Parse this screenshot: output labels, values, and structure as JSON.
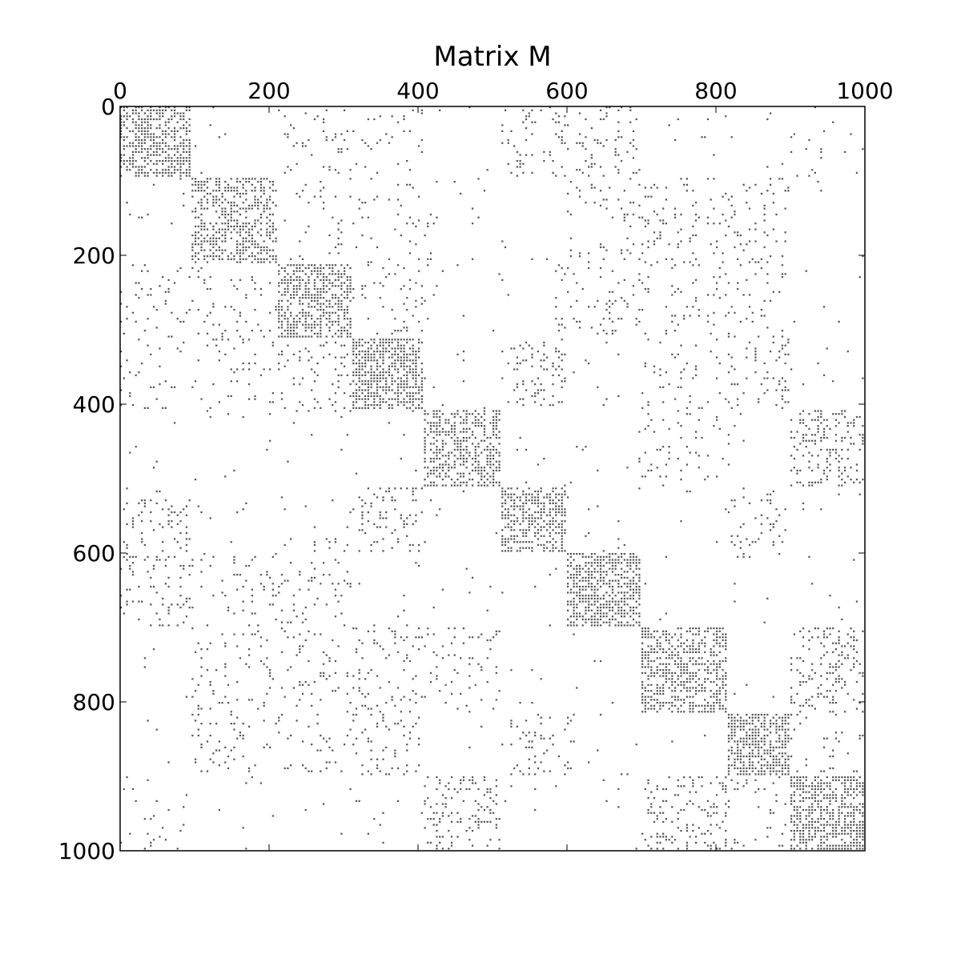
{
  "chart_data": {
    "type": "heatmap",
    "style": "sparsity-pattern",
    "title": "Matrix M",
    "xlabel": "",
    "ylabel": "",
    "x_axis_position": "top",
    "y_axis_inverted": true,
    "xlim": [
      0,
      1000
    ],
    "ylim": [
      1000,
      0
    ],
    "x_ticks": [
      0,
      200,
      400,
      600,
      800,
      1000
    ],
    "y_ticks": [
      0,
      200,
      400,
      600,
      800,
      1000
    ],
    "x_tick_labels": [
      "0",
      "200",
      "400",
      "600",
      "800",
      "1000"
    ],
    "y_tick_labels": [
      "0",
      "200",
      "400",
      "600",
      "800",
      "1000"
    ],
    "grid": false,
    "marker_color": "#555555",
    "diagonal_blocks": [
      {
        "start": 0,
        "end": 95,
        "density": 0.55
      },
      {
        "start": 95,
        "end": 210,
        "density": 0.45
      },
      {
        "start": 210,
        "end": 310,
        "density": 0.55
      },
      {
        "start": 310,
        "end": 405,
        "density": 0.6
      },
      {
        "start": 405,
        "end": 510,
        "density": 0.5
      },
      {
        "start": 510,
        "end": 600,
        "density": 0.55
      },
      {
        "start": 600,
        "end": 700,
        "density": 0.6
      },
      {
        "start": 700,
        "end": 815,
        "density": 0.55
      },
      {
        "start": 815,
        "end": 900,
        "density": 0.65
      },
      {
        "start": 900,
        "end": 1000,
        "density": 0.6
      }
    ],
    "off_diagonal_blocks": [
      {
        "rows": [
          0,
          95
        ],
        "cols": [
          225,
          400
        ],
        "density": 0.05
      },
      {
        "rows": [
          0,
          95
        ],
        "cols": [
          525,
          700
        ],
        "density": 0.12
      },
      {
        "rows": [
          95,
          210
        ],
        "cols": [
          225,
          420
        ],
        "density": 0.06
      },
      {
        "rows": [
          95,
          210
        ],
        "cols": [
          600,
          900
        ],
        "density": 0.08
      },
      {
        "rows": [
          210,
          310
        ],
        "cols": [
          0,
          120
        ],
        "density": 0.07
      },
      {
        "rows": [
          210,
          310
        ],
        "cols": [
          320,
          410
        ],
        "density": 0.1
      },
      {
        "rows": [
          210,
          310
        ],
        "cols": [
          580,
          900
        ],
        "density": 0.07
      },
      {
        "rows": [
          310,
          405
        ],
        "cols": [
          0,
          100
        ],
        "density": 0.05
      },
      {
        "rows": [
          310,
          405
        ],
        "cols": [
          200,
          300
        ],
        "density": 0.08
      },
      {
        "rows": [
          310,
          405
        ],
        "cols": [
          540,
          600
        ],
        "density": 0.15
      },
      {
        "rows": [
          310,
          405
        ],
        "cols": [
          700,
          900
        ],
        "density": 0.08
      },
      {
        "rows": [
          405,
          510
        ],
        "cols": [
          900,
          1000
        ],
        "density": 0.2
      },
      {
        "rows": [
          405,
          510
        ],
        "cols": [
          700,
          820
        ],
        "density": 0.08
      },
      {
        "rows": [
          510,
          600
        ],
        "cols": [
          320,
          400
        ],
        "density": 0.15
      },
      {
        "rows": [
          510,
          600
        ],
        "cols": [
          0,
          90
        ],
        "density": 0.06
      },
      {
        "rows": [
          510,
          600
        ],
        "cols": [
          820,
          900
        ],
        "density": 0.07
      },
      {
        "rows": [
          600,
          700
        ],
        "cols": [
          0,
          95
        ],
        "density": 0.07
      },
      {
        "rows": [
          600,
          700
        ],
        "cols": [
          140,
          230
        ],
        "density": 0.06
      },
      {
        "rows": [
          700,
          815
        ],
        "cols": [
          200,
          330
        ],
        "density": 0.06
      },
      {
        "rows": [
          700,
          815
        ],
        "cols": [
          400,
          510
        ],
        "density": 0.06
      },
      {
        "rows": [
          700,
          815
        ],
        "cols": [
          900,
          1000
        ],
        "density": 0.2
      },
      {
        "rows": [
          815,
          900
        ],
        "cols": [
          310,
          405
        ],
        "density": 0.12
      },
      {
        "rows": [
          815,
          900
        ],
        "cols": [
          525,
          610
        ],
        "density": 0.12
      },
      {
        "rows": [
          815,
          900
        ],
        "cols": [
          900,
          1000
        ],
        "density": 0.06
      },
      {
        "rows": [
          900,
          1000
        ],
        "cols": [
          410,
          510
        ],
        "density": 0.15
      },
      {
        "rows": [
          900,
          1000
        ],
        "cols": [
          700,
          815
        ],
        "density": 0.18
      },
      {
        "rows": [
          900,
          1000
        ],
        "cols": [
          0,
          95
        ],
        "density": 0.04
      }
    ],
    "background_density": 0.01
  }
}
